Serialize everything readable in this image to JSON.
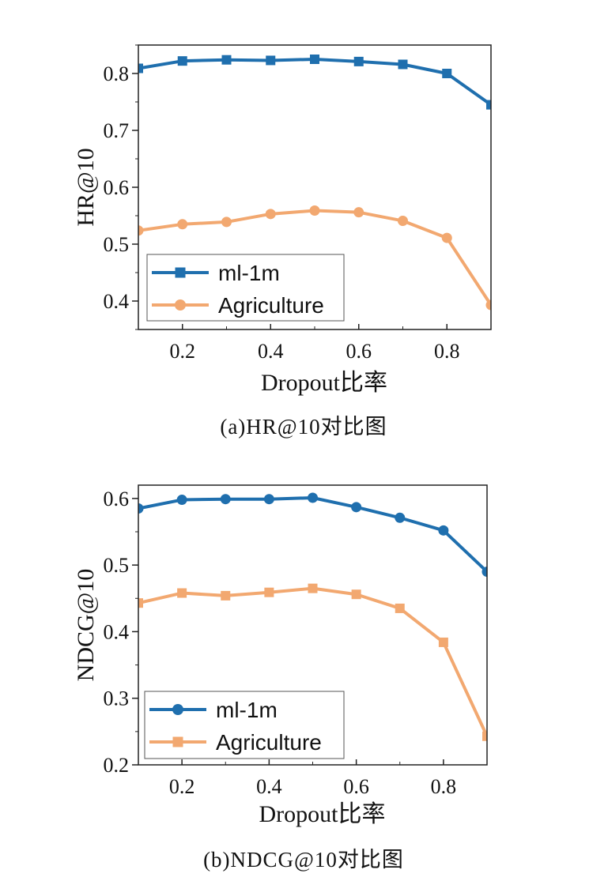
{
  "chart_data": [
    {
      "type": "line",
      "xlabel": "Dropout比率",
      "ylabel": "HR@10",
      "caption": "(a)HR@10对比图",
      "xlim": [
        0.1,
        0.9
      ],
      "ylim": [
        0.35,
        0.85
      ],
      "xticks": [
        "0.2",
        "0.4",
        "0.6",
        "0.8"
      ],
      "yticks": [
        "0.4",
        "0.5",
        "0.6",
        "0.7",
        "0.8"
      ],
      "legend_position": "bottom-left",
      "x": [
        0.1,
        0.2,
        0.3,
        0.4,
        0.5,
        0.6,
        0.7,
        0.8,
        0.9
      ],
      "series": [
        {
          "name": "ml-1m",
          "color": "#1f6fae",
          "marker": "square",
          "values": [
            0.809,
            0.822,
            0.824,
            0.823,
            0.825,
            0.821,
            0.816,
            0.8,
            0.745
          ]
        },
        {
          "name": "Agriculture",
          "color": "#f2a870",
          "marker": "circle",
          "values": [
            0.524,
            0.535,
            0.539,
            0.553,
            0.559,
            0.556,
            0.541,
            0.511,
            0.393
          ]
        }
      ]
    },
    {
      "type": "line",
      "xlabel": "Dropout比率",
      "ylabel": "NDCG@10",
      "caption": "(b)NDCG@10对比图",
      "xlim": [
        0.1,
        0.9
      ],
      "ylim": [
        0.2,
        0.62
      ],
      "xticks": [
        "0.2",
        "0.4",
        "0.6",
        "0.8"
      ],
      "yticks": [
        "0.2",
        "0.3",
        "0.4",
        "0.5",
        "0.6"
      ],
      "legend_position": "bottom-left",
      "x": [
        0.1,
        0.2,
        0.3,
        0.4,
        0.5,
        0.6,
        0.7,
        0.8,
        0.9
      ],
      "series": [
        {
          "name": "ml-1m",
          "color": "#1f6fae",
          "marker": "circle",
          "values": [
            0.585,
            0.598,
            0.599,
            0.599,
            0.601,
            0.587,
            0.571,
            0.552,
            0.49
          ]
        },
        {
          "name": "Agriculture",
          "color": "#f2a870",
          "marker": "square",
          "values": [
            0.443,
            0.458,
            0.454,
            0.459,
            0.465,
            0.456,
            0.435,
            0.384,
            0.243
          ]
        }
      ]
    }
  ]
}
